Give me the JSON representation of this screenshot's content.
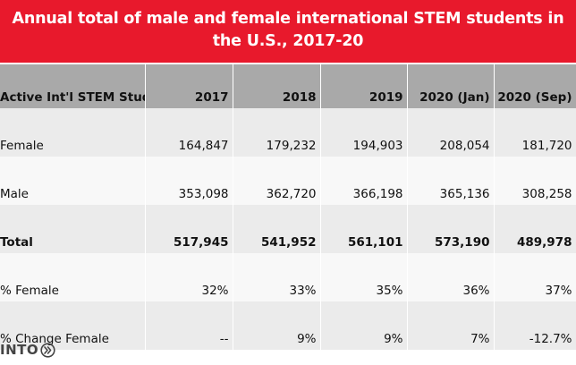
{
  "chart_data": {
    "type": "table",
    "title": "Annual total of male and female international STEM students in the U.S., 2017-20",
    "columns": [
      "Active Int'l STEM Students",
      "2017",
      "2018",
      "2019",
      "2020 (Jan)",
      "2020 (Sep)"
    ],
    "rows": [
      [
        "Female",
        "164,847",
        "179,232",
        "194,903",
        "208,054",
        "181,720"
      ],
      [
        "Male",
        "353,098",
        "362,720",
        "366,198",
        "365,136",
        "308,258"
      ],
      [
        "Total",
        "517,945",
        "541,952",
        "561,101",
        "573,190",
        "489,978"
      ],
      [
        "% Female",
        "32%",
        "33%",
        "35%",
        "36%",
        "37%"
      ],
      [
        "% Change Female",
        "--",
        "9%",
        "9%",
        "7%",
        "-12.7%"
      ]
    ],
    "header_color": "#a9a9a9",
    "title_background": "#e8192c"
  },
  "logo": {
    "text": "INTO",
    "icon": "double-chevron-icon"
  }
}
